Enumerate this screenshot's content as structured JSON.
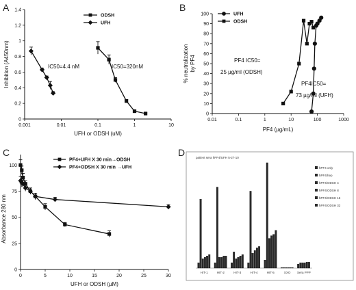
{
  "chart_data": [
    {
      "type": "line",
      "panel": "A",
      "xscale": "log",
      "xlim": [
        0.001,
        10
      ],
      "ylim": [
        0,
        1.4
      ],
      "xticks": [
        "0.001",
        "0.01",
        "0.1",
        "1",
        "10"
      ],
      "yticks": [
        "0",
        "0.2",
        "0.4",
        "0.6",
        "0.8",
        "1",
        "1.2",
        "1.4"
      ],
      "xlabel": "UFH or ODSH (uM)",
      "ylabel": "Inhibition (A450nm)",
      "legend_position": "top-right",
      "series": [
        {
          "name": "ODSH",
          "marker": "square",
          "x": [
            0.1,
            0.2,
            0.3,
            0.6,
            1.0,
            2.0
          ],
          "y": [
            0.91,
            0.76,
            0.5,
            0.23,
            0.1,
            0.07
          ],
          "err": [
            0.08,
            0.06,
            0.03,
            0.02,
            0.01,
            0.01
          ]
        },
        {
          "name": "UFH",
          "marker": "diamond",
          "x": [
            0.0015,
            0.003,
            0.004,
            0.005,
            0.006
          ],
          "y": [
            0.87,
            0.63,
            0.53,
            0.43,
            0.33
          ],
          "err": [
            0.05,
            0.02,
            0.02,
            0.05,
            0.02
          ]
        }
      ],
      "annotations": [
        {
          "text": "IC50=4.4 nM"
        },
        {
          "text": "IC50=320nM"
        }
      ]
    },
    {
      "type": "line",
      "panel": "B",
      "xscale": "log",
      "xlim": [
        0.01,
        1000
      ],
      "ylim": [
        0,
        100
      ],
      "xticks": [
        "0.01",
        "0.1",
        "1",
        "10",
        "100",
        "1000"
      ],
      "yticks": [
        "0",
        "10",
        "20",
        "30",
        "40",
        "50",
        "60",
        "70",
        "80",
        "90",
        "100"
      ],
      "xlabel": "PF4 (µg/mL)",
      "ylabel": "% neutralization by PF4",
      "legend_position": "top-left",
      "series": [
        {
          "name": "UFH",
          "marker": "circle",
          "x": [
            60,
            70,
            75,
            80,
            90,
            100,
            120,
            140
          ],
          "y": [
            2,
            20,
            45,
            70,
            88,
            90,
            93,
            96
          ]
        },
        {
          "name": "ODSH",
          "marker": "square",
          "x": [
            5,
            10,
            20,
            30,
            40,
            50,
            60,
            70
          ],
          "y": [
            10,
            22,
            50,
            93,
            70,
            90,
            92,
            86
          ]
        }
      ],
      "annotations": [
        {
          "text": "PF4 IC50=",
          "text2": "25 µg/ml (ODSH)"
        },
        {
          "text": "PF4IC50=",
          "text2": "73 µg/ml (UFH)"
        }
      ]
    },
    {
      "type": "line",
      "panel": "C",
      "xlim": [
        0,
        30
      ],
      "ylim": [
        0,
        110
      ],
      "xticks": [
        "0",
        "5",
        "10",
        "15",
        "20",
        "25",
        "30"
      ],
      "yticks": [
        "0",
        "25",
        "50",
        "75",
        "100"
      ],
      "xlabel": "UFH or ODSH (µM)",
      "ylabel": "Absorbance 280 nm",
      "legend_position": "top-right",
      "series": [
        {
          "name": "PF4+UFH X 30 min→ODSH",
          "marker": "square",
          "x": [
            0,
            0.25,
            0.5,
            1,
            2,
            3,
            5,
            9,
            18
          ],
          "y": [
            100,
            95,
            88,
            82,
            75,
            70,
            60,
            43,
            34
          ],
          "err": [
            5,
            4,
            4,
            3,
            3,
            3,
            3,
            2,
            3
          ]
        },
        {
          "name": "PF4+ODSH X 30 min →UFH",
          "marker": "diamond",
          "x": [
            0,
            0.25,
            0.5,
            1,
            2,
            3,
            7,
            30
          ],
          "y": [
            85,
            83,
            82,
            78,
            75,
            70,
            67,
            60
          ],
          "err": [
            4,
            4,
            3,
            3,
            3,
            3,
            2,
            2
          ]
        }
      ]
    },
    {
      "type": "bar",
      "panel": "D",
      "title": "patient sera hPF4/UFH 5-27-10",
      "categories": [
        "HIT-1",
        "HIT-2",
        "HIT-3",
        "HIT-4",
        "HIT-5",
        "SXO",
        "Sera PPP"
      ],
      "legend_position": "right",
      "series": [
        {
          "name": "hPF4 only",
          "values": [
            0.2,
            0.2,
            0.2,
            0.2,
            0.3,
            0.02,
            0.15
          ]
        },
        {
          "name": "hPF4/hep",
          "values": [
            2.55,
            3.0,
            0.6,
            2.85,
            3.9,
            0.02,
            0.2
          ]
        },
        {
          "name": "hPF4/ODSH 4",
          "values": [
            0.35,
            0.4,
            0.35,
            0.55,
            1.1,
            0.02,
            0.2
          ]
        },
        {
          "name": "hPF4/ODSH 8",
          "values": [
            0.4,
            0.4,
            0.4,
            0.65,
            1.2,
            0.02,
            0.2
          ]
        },
        {
          "name": "hPF4/ODSH 16",
          "values": [
            0.45,
            0.45,
            0.45,
            0.75,
            1.25,
            0.02,
            0.22
          ]
        },
        {
          "name": "hPF4/ODSH 32",
          "values": [
            0.5,
            0.45,
            0.5,
            0.8,
            1.4,
            0.02,
            0.22
          ]
        }
      ]
    }
  ],
  "panels": {
    "A": {
      "label": "A",
      "xlabel": "UFH or ODSH (uM)",
      "ylabel": "Inhibition (A450nm)",
      "legend": [
        "ODSH",
        "UFH"
      ],
      "ann1": "IC50=4.4 nM",
      "ann2": "IC50=320nM"
    },
    "B": {
      "label": "B",
      "xlabel": "PF4 (µg/mL)",
      "ylabel1": "% neutralization",
      "ylabel2": "by PF4",
      "legend": [
        "UFH",
        "ODSH"
      ],
      "ann1a": "PF4 IC50=",
      "ann1b": "25 µg/ml (ODSH)",
      "ann2a": "PF4IC50=",
      "ann2b": "73 µg/ml (UFH)"
    },
    "C": {
      "label": "C",
      "xlabel": "UFH or ODSH (µM)",
      "ylabel": "Absorbance 280 nm",
      "legend": [
        "PF4+UFH X 30 min→ODSH",
        "PF4+ODSH X 30 min →UFH"
      ]
    },
    "D": {
      "label": "D",
      "title": "patient sera hPF4/UFH 5-27-10",
      "legend": [
        "hPF4 only",
        "hPF4/hep",
        "hPF4/ODSH 4",
        "hPF4/ODSH 8",
        "hPF4/ODSH 16",
        "hPF4/ODSH 32"
      ],
      "categories": [
        "HIT-1",
        "HIT-2",
        "HIT-3",
        "HIT-4",
        "HIT-5",
        "SXO",
        "Sera PPP"
      ]
    }
  },
  "colors": {
    "line": "#111111",
    "axis": "#111111",
    "bar": "#2a2a2a",
    "frame": "#888888"
  }
}
